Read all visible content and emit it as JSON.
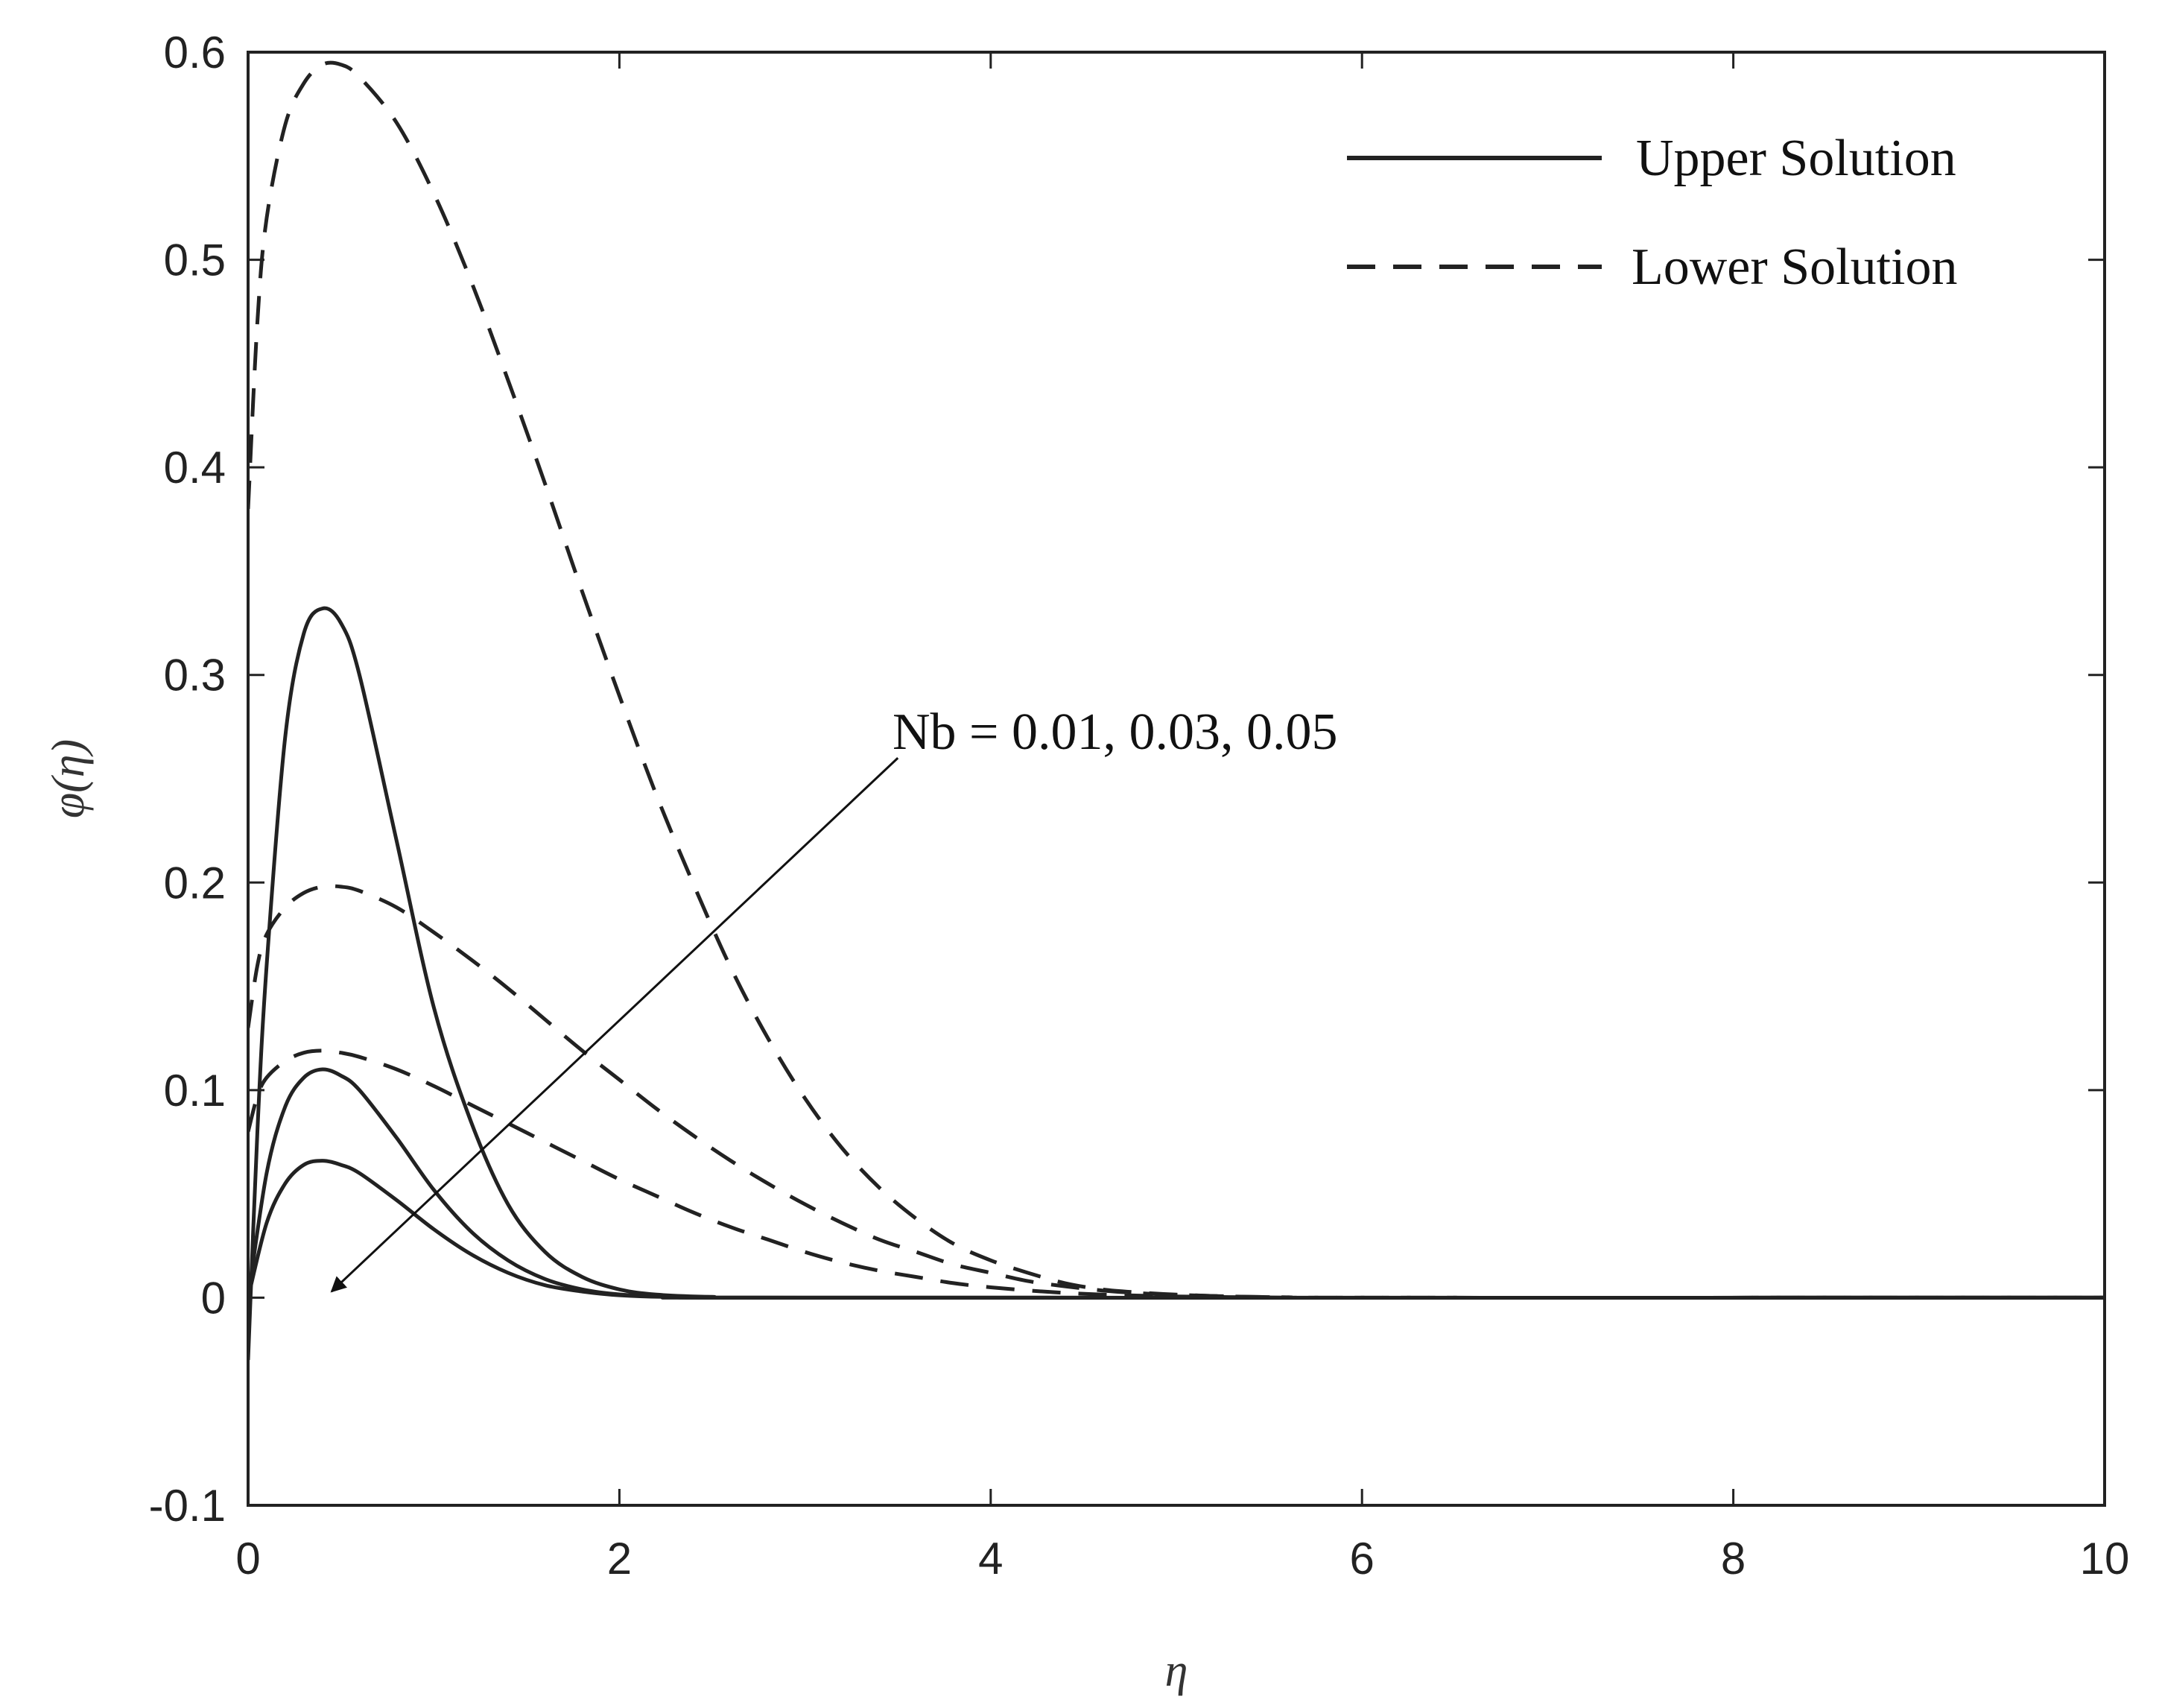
{
  "chart_data": {
    "type": "line",
    "title": "",
    "xlabel": "η",
    "ylabel": "φ(η)",
    "xlim": [
      0,
      10
    ],
    "ylim": [
      -0.1,
      0.6
    ],
    "xticks": [
      0,
      2,
      4,
      6,
      8,
      10
    ],
    "yticks": [
      -0.1,
      0,
      0.1,
      0.2,
      0.3,
      0.4,
      0.5,
      0.6
    ],
    "xtick_labels": [
      "0",
      "2",
      "4",
      "6",
      "8",
      "10"
    ],
    "ytick_labels": [
      "-0.1",
      "0",
      "0.1",
      "0.2",
      "0.3",
      "0.4",
      "0.5",
      "0.6"
    ],
    "grid": false,
    "legend": {
      "position": "top-right",
      "entries": [
        {
          "label": "Upper Solution",
          "style": "solid"
        },
        {
          "label": "Lower Solution",
          "style": "dashed"
        }
      ]
    },
    "annotation": {
      "text": "Nb = 0.01, 0.03, 0.05",
      "arrow_from": [
        3.5,
        0.26
      ],
      "arrow_to": [
        0.45,
        0.003
      ]
    },
    "series": [
      {
        "group": "Upper Solution",
        "style": "solid",
        "x": [
          0,
          0.05,
          0.1,
          0.2,
          0.3,
          0.4,
          0.5,
          0.6,
          0.8,
          1.0,
          1.2,
          1.4,
          1.6,
          1.8,
          2.0,
          2.2,
          2.5,
          3.0,
          10
        ],
        "y": [
          -0.03,
          0.08,
          0.16,
          0.27,
          0.32,
          0.332,
          0.325,
          0.3,
          0.22,
          0.14,
          0.085,
          0.045,
          0.022,
          0.01,
          0.004,
          0.0015,
          0.0004,
          0,
          0
        ]
      },
      {
        "group": "Upper Solution",
        "style": "solid",
        "x": [
          0,
          0.1,
          0.2,
          0.3,
          0.4,
          0.5,
          0.6,
          0.8,
          1.0,
          1.2,
          1.4,
          1.6,
          1.8,
          2.0,
          2.3,
          3.0,
          10
        ],
        "y": [
          0,
          0.06,
          0.092,
          0.106,
          0.11,
          0.107,
          0.1,
          0.077,
          0.052,
          0.032,
          0.018,
          0.009,
          0.004,
          0.0016,
          0.0004,
          0,
          0
        ]
      },
      {
        "group": "Upper Solution",
        "style": "solid",
        "x": [
          0,
          0.1,
          0.2,
          0.3,
          0.4,
          0.5,
          0.6,
          0.8,
          1.0,
          1.2,
          1.4,
          1.6,
          1.8,
          2.0,
          2.3,
          3.0,
          10
        ],
        "y": [
          0,
          0.036,
          0.055,
          0.064,
          0.066,
          0.064,
          0.06,
          0.047,
          0.033,
          0.021,
          0.012,
          0.006,
          0.003,
          0.0012,
          0.0003,
          0,
          0
        ]
      },
      {
        "group": "Lower Solution",
        "style": "dashed",
        "x": [
          0,
          0.05,
          0.1,
          0.2,
          0.3,
          0.4,
          0.5,
          0.6,
          0.8,
          1.0,
          1.2,
          1.4,
          1.6,
          1.8,
          2.0,
          2.2,
          2.4,
          2.6,
          2.8,
          3.0,
          3.2,
          3.4,
          3.6,
          3.8,
          4.0,
          4.2,
          4.4,
          4.6,
          4.8,
          5.0,
          5.3,
          5.6,
          6.0,
          10
        ],
        "y": [
          0.38,
          0.47,
          0.52,
          0.565,
          0.585,
          0.594,
          0.594,
          0.588,
          0.566,
          0.532,
          0.49,
          0.442,
          0.392,
          0.34,
          0.29,
          0.242,
          0.199,
          0.159,
          0.125,
          0.096,
          0.072,
          0.053,
          0.038,
          0.026,
          0.018,
          0.012,
          0.007,
          0.004,
          0.0025,
          0.0015,
          0.0006,
          0.0002,
          0,
          0
        ]
      },
      {
        "group": "Lower Solution",
        "style": "dashed",
        "x": [
          0,
          0.05,
          0.1,
          0.2,
          0.3,
          0.4,
          0.5,
          0.6,
          0.8,
          1.0,
          1.2,
          1.4,
          1.6,
          1.8,
          2.0,
          2.2,
          2.4,
          2.6,
          2.8,
          3.0,
          3.2,
          3.4,
          3.6,
          3.8,
          4.0,
          4.2,
          4.4,
          4.6,
          4.8,
          5.0,
          5.3,
          5.6,
          6.0,
          10
        ],
        "y": [
          0.13,
          0.16,
          0.175,
          0.188,
          0.195,
          0.198,
          0.198,
          0.196,
          0.188,
          0.176,
          0.163,
          0.149,
          0.134,
          0.119,
          0.105,
          0.091,
          0.078,
          0.066,
          0.055,
          0.045,
          0.036,
          0.028,
          0.022,
          0.016,
          0.012,
          0.008,
          0.0055,
          0.0035,
          0.0022,
          0.0014,
          0.0006,
          0.0002,
          0,
          0
        ]
      },
      {
        "group": "Lower Solution",
        "style": "dashed",
        "x": [
          0,
          0.05,
          0.1,
          0.2,
          0.3,
          0.4,
          0.5,
          0.6,
          0.8,
          1.0,
          1.2,
          1.4,
          1.6,
          1.8,
          2.0,
          2.2,
          2.4,
          2.6,
          2.8,
          3.0,
          3.2,
          3.4,
          3.6,
          3.8,
          4.0,
          4.2,
          4.4,
          4.6,
          4.8,
          5.0,
          5.3,
          5.6,
          6.0,
          10
        ],
        "y": [
          0.08,
          0.097,
          0.106,
          0.114,
          0.118,
          0.119,
          0.118,
          0.116,
          0.11,
          0.102,
          0.093,
          0.084,
          0.075,
          0.066,
          0.057,
          0.049,
          0.041,
          0.034,
          0.028,
          0.022,
          0.017,
          0.013,
          0.01,
          0.007,
          0.005,
          0.0035,
          0.0023,
          0.0015,
          0.001,
          0.0006,
          0.0003,
          0.0001,
          0,
          0
        ]
      }
    ]
  }
}
